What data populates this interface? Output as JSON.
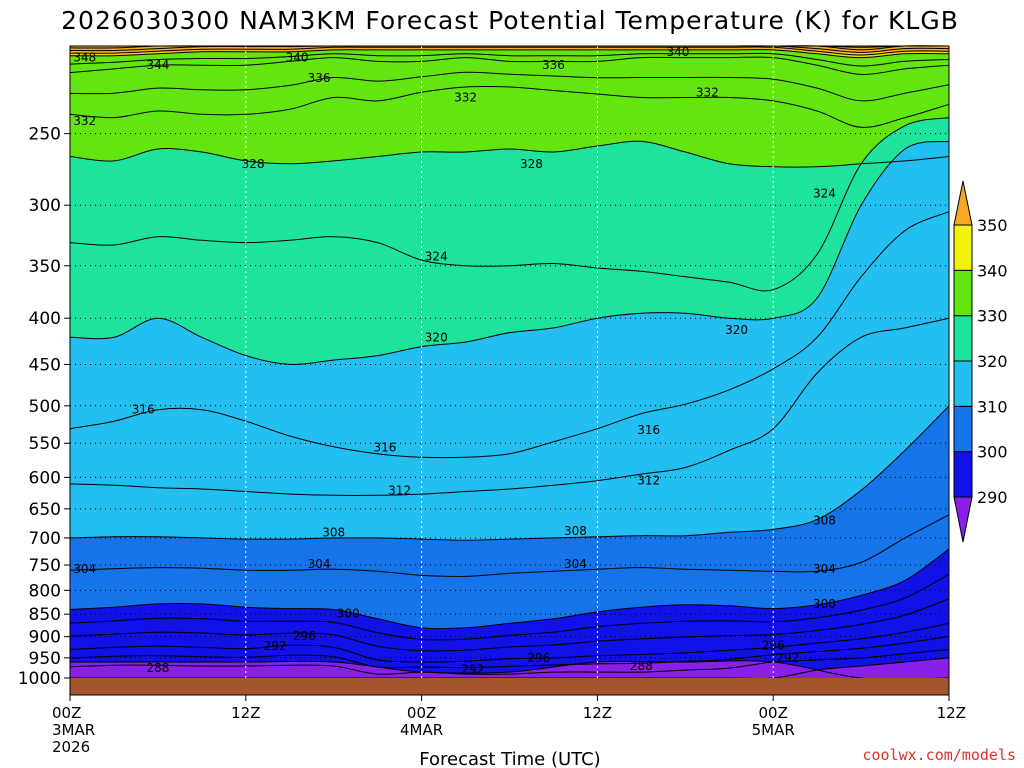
{
  "chart_data": {
    "type": "contour-timeheight",
    "title": "2026030300 NAM3KM Forecast Potential Temperature (K) for KLGB",
    "xlabel": "Forecast Time (UTC)",
    "ylabel": "",
    "credit": "coolwx.com/models",
    "x_ticks": [
      {
        "hour": 0,
        "lines": [
          "00Z",
          "3MAR",
          "2026"
        ]
      },
      {
        "hour": 12,
        "lines": [
          "12Z"
        ]
      },
      {
        "hour": 24,
        "lines": [
          "00Z",
          "4MAR"
        ]
      },
      {
        "hour": 36,
        "lines": [
          "12Z"
        ]
      },
      {
        "hour": 48,
        "lines": [
          "00Z",
          "5MAR"
        ]
      },
      {
        "hour": 60,
        "lines": [
          "12Z"
        ]
      }
    ],
    "xlim": [
      0,
      60
    ],
    "ylim_pressure_hpa": [
      1000,
      200
    ],
    "y_ticks": [
      250,
      300,
      350,
      400,
      450,
      500,
      550,
      600,
      650,
      700,
      750,
      800,
      850,
      900,
      950,
      1000
    ],
    "color_levels": [
      290,
      300,
      310,
      320,
      330,
      340,
      350
    ],
    "color_bins": [
      {
        "range": "<290",
        "color": "#8a1fe8"
      },
      {
        "range": "290-300",
        "color": "#1111e8"
      },
      {
        "range": "300-310",
        "color": "#1674ea"
      },
      {
        "range": "310-320",
        "color": "#22bff0"
      },
      {
        "range": "320-330",
        "color": "#1ee39c"
      },
      {
        "range": "330-340",
        "color": "#63e60f"
      },
      {
        "range": "340-350",
        "color": "#f2f20c"
      },
      {
        "range": ">350",
        "color": "#f5aa25"
      }
    ],
    "colorbar_labels": [
      "350",
      "340",
      "330",
      "320",
      "310",
      "300",
      "290"
    ],
    "ground_color": "#a3542a",
    "contour_interval_k": 2,
    "surface_profile": {
      "hours": [
        0,
        6,
        12,
        18,
        24,
        30,
        36,
        42,
        48,
        54,
        60
      ],
      "theta_1000": [
        287.2,
        287.0,
        287.5,
        287.3,
        290.0,
        290.5,
        287.6,
        287.2,
        289.0,
        292.0,
        293.5
      ]
    },
    "isentrope_pressures_hpa": {
      "hours": [
        0,
        3,
        6,
        9,
        12,
        15,
        18,
        21,
        24,
        27,
        30,
        33,
        36,
        39,
        42,
        45,
        48,
        51,
        54,
        57,
        60
      ],
      "levels": {
        "290": [
          1000,
          1000,
          1000,
          1000,
          1000,
          1000,
          1000,
          1000,
          1000,
          1000,
          1000,
          1000,
          1000,
          1000,
          1000,
          1000,
          1000,
          980,
          970,
          960,
          950
        ],
        "292": [
          972,
          968,
          968,
          970,
          970,
          968,
          970,
          990,
          985,
          990,
          990,
          985,
          985,
          985,
          980,
          975,
          960,
          955,
          950,
          940,
          930
        ],
        "296": [
          930,
          925,
          922,
          925,
          928,
          920,
          925,
          955,
          960,
          958,
          952,
          950,
          945,
          942,
          938,
          932,
          925,
          915,
          905,
          890,
          870
        ],
        "300": [
          840,
          835,
          828,
          828,
          835,
          838,
          840,
          860,
          880,
          880,
          870,
          860,
          845,
          835,
          830,
          832,
          838,
          830,
          810,
          780,
          720
        ],
        "304": [
          760,
          757,
          755,
          756,
          760,
          760,
          758,
          762,
          770,
          772,
          766,
          762,
          758,
          755,
          758,
          760,
          762,
          762,
          745,
          700,
          660
        ],
        "308": [
          700,
          698,
          698,
          700,
          702,
          702,
          700,
          700,
          702,
          704,
          702,
          700,
          698,
          696,
          696,
          690,
          685,
          668,
          620,
          560,
          500
        ],
        "312": [
          610,
          612,
          616,
          618,
          622,
          626,
          628,
          628,
          626,
          622,
          618,
          612,
          605,
          595,
          585,
          560,
          530,
          460,
          420,
          410,
          400
        ],
        "316": [
          530,
          520,
          505,
          505,
          520,
          540,
          555,
          565,
          570,
          570,
          565,
          548,
          530,
          510,
          498,
          480,
          455,
          420,
          360,
          320,
          305
        ],
        "320": [
          420,
          420,
          400,
          420,
          440,
          450,
          445,
          440,
          430,
          425,
          415,
          410,
          400,
          395,
          395,
          400,
          400,
          380,
          300,
          260,
          255
        ],
        "324": [
          330,
          332,
          325,
          328,
          330,
          328,
          325,
          330,
          345,
          350,
          350,
          348,
          352,
          355,
          360,
          365,
          372,
          340,
          270,
          245,
          240
        ],
        "328": [
          265,
          268,
          260,
          262,
          268,
          270,
          268,
          265,
          262,
          262,
          260,
          262,
          258,
          255,
          262,
          270,
          272,
          272,
          270,
          268,
          265
        ],
        "332": [
          238,
          240,
          236,
          238,
          238,
          235,
          228,
          230,
          225,
          222,
          222,
          224,
          226,
          228,
          228,
          228,
          230,
          236,
          246,
          240,
          232
        ],
        "336": [
          214,
          212,
          210,
          210,
          210,
          208,
          206,
          208,
          208,
          206,
          208,
          208,
          208,
          206,
          206,
          206,
          206,
          210,
          215,
          212,
          210
        ],
        "340": [
          205,
          205,
          204,
          203,
          203,
          203,
          202,
          202,
          202,
          202,
          202,
          202,
          202,
          202,
          202,
          202,
          202,
          204,
          206,
          204,
          204
        ]
      }
    },
    "contour_labels": [
      {
        "text": "348",
        "hour": 1.0,
        "p": 206
      },
      {
        "text": "344",
        "hour": 6.0,
        "p": 210
      },
      {
        "text": "340",
        "hour": 15.5,
        "p": 206
      },
      {
        "text": "336",
        "hour": 17.0,
        "p": 217
      },
      {
        "text": "336",
        "hour": 33.0,
        "p": 210
      },
      {
        "text": "340",
        "hour": 41.5,
        "p": 203
      },
      {
        "text": "332",
        "hour": 1.0,
        "p": 242
      },
      {
        "text": "332",
        "hour": 27.0,
        "p": 228
      },
      {
        "text": "332",
        "hour": 43.5,
        "p": 225
      },
      {
        "text": "328",
        "hour": 12.5,
        "p": 270
      },
      {
        "text": "328",
        "hour": 31.5,
        "p": 270
      },
      {
        "text": "324",
        "hour": 51.5,
        "p": 291
      },
      {
        "text": "324",
        "hour": 25.0,
        "p": 342
      },
      {
        "text": "320",
        "hour": 25.0,
        "p": 420
      },
      {
        "text": "320",
        "hour": 45.5,
        "p": 412
      },
      {
        "text": "316",
        "hour": 5.0,
        "p": 505
      },
      {
        "text": "316",
        "hour": 21.5,
        "p": 556
      },
      {
        "text": "316",
        "hour": 39.5,
        "p": 532
      },
      {
        "text": "312",
        "hour": 22.5,
        "p": 620
      },
      {
        "text": "312",
        "hour": 39.5,
        "p": 605
      },
      {
        "text": "308",
        "hour": 18.0,
        "p": 690
      },
      {
        "text": "308",
        "hour": 34.5,
        "p": 688
      },
      {
        "text": "308",
        "hour": 51.5,
        "p": 670
      },
      {
        "text": "304",
        "hour": 1.0,
        "p": 758
      },
      {
        "text": "304",
        "hour": 17.0,
        "p": 748
      },
      {
        "text": "304",
        "hour": 34.5,
        "p": 748
      },
      {
        "text": "304",
        "hour": 51.5,
        "p": 758
      },
      {
        "text": "300",
        "hour": 19.0,
        "p": 848
      },
      {
        "text": "300",
        "hour": 51.5,
        "p": 828
      },
      {
        "text": "296",
        "hour": 16.0,
        "p": 898
      },
      {
        "text": "296",
        "hour": 32.0,
        "p": 950
      },
      {
        "text": "296",
        "hour": 48.0,
        "p": 920
      },
      {
        "text": "292",
        "hour": 14.0,
        "p": 922
      },
      {
        "text": "292",
        "hour": 27.5,
        "p": 978
      },
      {
        "text": "292",
        "hour": 49.0,
        "p": 950
      },
      {
        "text": "288",
        "hour": 6.0,
        "p": 975
      },
      {
        "text": "288",
        "hour": 39.0,
        "p": 970
      }
    ]
  }
}
